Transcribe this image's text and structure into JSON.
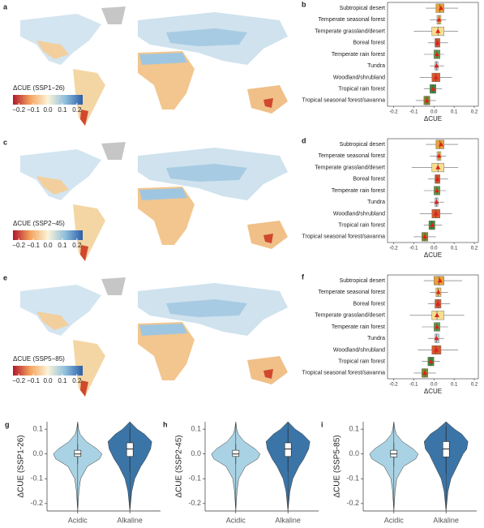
{
  "chart_data": [
    {
      "type": "map",
      "label": "a",
      "colorbar_label": "ΔCUE (SSP1−26)",
      "xlim": [
        -0.24,
        0.24
      ],
      "xticks": [
        {
          "value": -0.2,
          "label": "−0.2"
        },
        {
          "value": -0.1,
          "label": "−0.1"
        },
        {
          "value": 0,
          "label": "0.0"
        },
        0.1,
        0.2
      ]
    },
    {
      "type": "box",
      "label": "b",
      "xlabel": "ΔCUE",
      "xlim": [
        -0.23,
        0.22
      ],
      "xticks": [
        -0.2,
        -0.1,
        {
          "value": 0,
          "label": "0.0"
        },
        0.1,
        0.2
      ],
      "categories": [
        "Subtropical desert",
        "Temperate seasonal forest",
        "Temperate grassland/desert",
        "Boreal forest",
        "Temperate rain forest",
        "Tundra",
        "Woodland/shrubland",
        "Tropical rain forest",
        "Tropical seasonal forest/savanna"
      ],
      "colors": [
        "#e4a33c",
        "#eec36a",
        "#f6df8e",
        "#d35a30",
        "#5a9e46",
        "#b8d8e6",
        "#d4582e",
        "#3a8a3a",
        "#7d8a2c"
      ],
      "low": [
        -0.04,
        -0.02,
        -0.1,
        -0.03,
        -0.05,
        -0.02,
        -0.07,
        -0.05,
        -0.09
      ],
      "q1": [
        0.01,
        0.015,
        -0.01,
        0.005,
        0,
        0.005,
        -0.01,
        -0.02,
        -0.05
      ],
      "median": [
        0.03,
        0.025,
        0.02,
        0.015,
        0.015,
        0.012,
        0.01,
        -0.005,
        -0.035
      ],
      "q3": [
        0.05,
        0.035,
        0.05,
        0.03,
        0.03,
        0.02,
        0.03,
        0.01,
        -0.02
      ],
      "high": [
        0.12,
        0.06,
        0.12,
        0.07,
        0.05,
        0.05,
        0.09,
        0.04,
        0.01
      ],
      "mean": [
        0.035,
        0.025,
        0.02,
        0.017,
        0.015,
        0.013,
        0.01,
        -0.004,
        -0.035
      ]
    },
    {
      "type": "map",
      "label": "c",
      "colorbar_label": "ΔCUE (SSP2−45)",
      "xlim": [
        -0.24,
        0.24
      ],
      "xticks": [
        {
          "value": -0.2,
          "label": "−0.2"
        },
        {
          "value": -0.1,
          "label": "−0.1"
        },
        {
          "value": 0,
          "label": "0.0"
        },
        0.1,
        0.2
      ]
    },
    {
      "type": "box",
      "label": "d",
      "xlabel": "ΔCUE",
      "xlim": [
        -0.23,
        0.22
      ],
      "xticks": [
        -0.2,
        -0.1,
        {
          "value": 0,
          "label": "0.0"
        },
        0.1,
        0.2
      ],
      "categories": [
        "Subtropical desert",
        "Temperate seasonal forest",
        "Temperate grassland/desert",
        "Boreal forest",
        "Temperate rain forest",
        "Tundra",
        "Woodland/shrubland",
        "Tropical rain forest",
        "Tropical seasonal forest/savanna"
      ],
      "colors": [
        "#e4a33c",
        "#eec36a",
        "#f6df8e",
        "#d35a30",
        "#5a9e46",
        "#b8d8e6",
        "#d4582e",
        "#3a8a3a",
        "#7d8a2c"
      ],
      "low": [
        -0.04,
        -0.02,
        -0.11,
        -0.03,
        -0.05,
        -0.02,
        -0.07,
        -0.05,
        -0.1
      ],
      "q1": [
        0.01,
        0.015,
        -0.01,
        0.005,
        0,
        0.005,
        -0.01,
        -0.025,
        -0.06
      ],
      "median": [
        0.03,
        0.025,
        0.02,
        0.015,
        0.015,
        0.012,
        0.01,
        -0.01,
        -0.045
      ],
      "q3": [
        0.05,
        0.035,
        0.05,
        0.03,
        0.03,
        0.02,
        0.03,
        0.005,
        -0.03
      ],
      "high": [
        0.12,
        0.06,
        0.12,
        0.07,
        0.06,
        0.05,
        0.09,
        0.04,
        0.01
      ],
      "mean": [
        0.035,
        0.025,
        0.02,
        0.017,
        0.015,
        0.013,
        0.01,
        -0.008,
        -0.045
      ]
    },
    {
      "type": "map",
      "label": "e",
      "colorbar_label": "ΔCUE (SSP5−85)",
      "xlim": [
        -0.24,
        0.24
      ],
      "xticks": [
        {
          "value": -0.2,
          "label": "−0.2"
        },
        {
          "value": -0.1,
          "label": "−0.1"
        },
        {
          "value": 0,
          "label": "0.0"
        },
        0.1,
        0.2
      ]
    },
    {
      "type": "box",
      "label": "f",
      "xlabel": "ΔCUE",
      "xlim": [
        -0.23,
        0.22
      ],
      "xticks": [
        -0.2,
        -0.1,
        {
          "value": 0,
          "label": "0.0"
        },
        0.1,
        0.2
      ],
      "categories": [
        "Subtropical desert",
        "Temperate seasonal forest",
        "Boreal forest",
        "Temperate grassland/desert",
        "Temperate rain forest",
        "Tundra",
        "Woodland/shrubland",
        "Tropical rain forest",
        "Tropical seasonal forest/savanna"
      ],
      "colors": [
        "#e4a33c",
        "#eec36a",
        "#d35a30",
        "#f6df8e",
        "#5a9e46",
        "#b8d8e6",
        "#d4582e",
        "#3a8a3a",
        "#7d8a2c"
      ],
      "low": [
        -0.05,
        -0.02,
        -0.03,
        -0.12,
        -0.06,
        -0.03,
        -0.08,
        -0.06,
        -0.1
      ],
      "q1": [
        0,
        0.01,
        0.005,
        -0.01,
        0,
        0.005,
        -0.01,
        -0.03,
        -0.06
      ],
      "median": [
        0.025,
        0.02,
        0.02,
        0.015,
        0.015,
        0.012,
        0.01,
        -0.015,
        -0.045
      ],
      "q3": [
        0.05,
        0.035,
        0.035,
        0.05,
        0.03,
        0.025,
        0.035,
        0,
        -0.03
      ],
      "high": [
        0.14,
        0.07,
        0.08,
        0.15,
        0.07,
        0.05,
        0.12,
        0.03,
        0.01
      ],
      "mean": [
        0.03,
        0.022,
        0.02,
        0.015,
        0.015,
        0.013,
        0.012,
        -0.015,
        -0.045
      ]
    },
    {
      "type": "violin",
      "label": "g",
      "ylabel": "ΔCUE (SSP1-26)",
      "ylim": [
        -0.23,
        0.13
      ],
      "yticks": [
        -0.2,
        -0.1,
        {
          "value": 0,
          "label": "0.0"
        },
        0.1
      ],
      "categories": [
        "Acidic",
        "Alkaline"
      ],
      "colors": [
        "#a9d3e4",
        "#3b75a8"
      ],
      "density_y": [
        -0.23,
        -0.2,
        -0.15,
        -0.1,
        -0.05,
        -0.02,
        0,
        0.02,
        0.05,
        0.08,
        0.1,
        0.13
      ],
      "densities": [
        [
          0,
          0.02,
          0.05,
          0.12,
          0.4,
          0.9,
          1,
          0.8,
          0.35,
          0.1,
          0.04,
          0
        ],
        [
          0,
          0.03,
          0.08,
          0.2,
          0.45,
          0.65,
          0.75,
          0.85,
          0.9,
          0.6,
          0.3,
          0
        ]
      ],
      "low": [
        -0.04,
        -0.07
      ],
      "q1": [
        -0.01,
        -0.01
      ],
      "median": [
        0,
        0.02
      ],
      "q3": [
        0.015,
        0.045
      ],
      "high": [
        0.04,
        0.1
      ]
    },
    {
      "type": "violin",
      "label": "h",
      "ylabel": "ΔCUE (SSP2-45)",
      "ylim": [
        -0.23,
        0.13
      ],
      "yticks": [
        -0.2,
        -0.1,
        {
          "value": 0,
          "label": "0.0"
        },
        0.1
      ],
      "categories": [
        "Acidic",
        "Alkaline"
      ],
      "colors": [
        "#a9d3e4",
        "#3b75a8"
      ],
      "density_y": [
        -0.23,
        -0.2,
        -0.15,
        -0.1,
        -0.05,
        -0.02,
        0,
        0.02,
        0.05,
        0.08,
        0.1,
        0.13
      ],
      "densities": [
        [
          0,
          0.02,
          0.05,
          0.12,
          0.4,
          0.9,
          1,
          0.8,
          0.35,
          0.1,
          0.04,
          0
        ],
        [
          0,
          0.03,
          0.08,
          0.2,
          0.45,
          0.65,
          0.75,
          0.85,
          0.9,
          0.6,
          0.3,
          0
        ]
      ],
      "low": [
        -0.04,
        -0.07
      ],
      "q1": [
        -0.01,
        -0.01
      ],
      "median": [
        0,
        0.02
      ],
      "q3": [
        0.015,
        0.045
      ],
      "high": [
        0.04,
        0.1
      ]
    },
    {
      "type": "violin",
      "label": "i",
      "ylabel": "ΔCUE (SSP5-85)",
      "ylim": [
        -0.23,
        0.13
      ],
      "yticks": [
        -0.2,
        -0.1,
        {
          "value": 0,
          "label": "0.0"
        },
        0.1
      ],
      "categories": [
        "Acidic",
        "Alkaline"
      ],
      "colors": [
        "#a9d3e4",
        "#3b75a8"
      ],
      "density_y": [
        -0.23,
        -0.2,
        -0.15,
        -0.1,
        -0.05,
        -0.02,
        0,
        0.02,
        0.05,
        0.08,
        0.1,
        0.13
      ],
      "densities": [
        [
          0,
          0.02,
          0.05,
          0.12,
          0.4,
          0.9,
          1,
          0.8,
          0.35,
          0.1,
          0.04,
          0
        ],
        [
          0,
          0.03,
          0.08,
          0.2,
          0.45,
          0.6,
          0.7,
          0.85,
          0.9,
          0.65,
          0.35,
          0
        ]
      ],
      "low": [
        -0.05,
        -0.08
      ],
      "q1": [
        -0.012,
        -0.012
      ],
      "median": [
        0,
        0.02
      ],
      "q3": [
        0.015,
        0.05
      ],
      "high": [
        0.045,
        0.11
      ]
    }
  ]
}
